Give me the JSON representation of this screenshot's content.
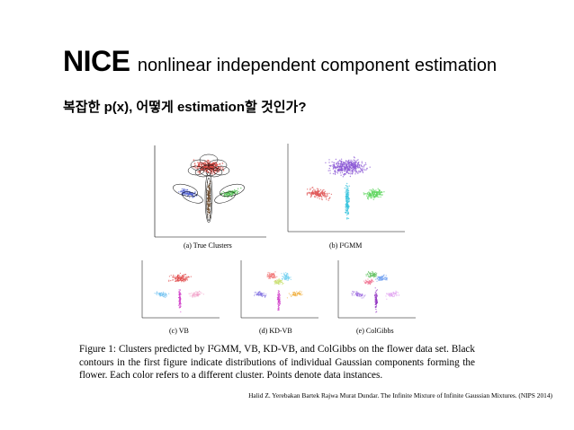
{
  "slide": {
    "title_main": "NICE",
    "title_sub": "nonlinear independent component estimation",
    "question": "복잡한 p(x), 어떻게 estimation할 것인가?"
  },
  "figure": {
    "panels": [
      {
        "label": "(a) True Clusters",
        "icon": "flower-ellipses-plot"
      },
      {
        "label": "(b) I²GMM",
        "icon": "scatter-cluster-plot"
      },
      {
        "label": "(c) VB",
        "icon": "scatter-cluster-plot"
      },
      {
        "label": "(d) KD-VB",
        "icon": "scatter-cluster-plot"
      },
      {
        "label": "(e) ColGibbs",
        "icon": "scatter-cluster-plot"
      }
    ],
    "caption": "Figure 1: Clusters predicted by I²GMM, VB, KD-VB, and ColGibbs on the flower data set. Black contours in the first figure indicate distributions of individual Gaussian components forming the flower. Each color refers to a different cluster. Points denote data instances.",
    "citation": "Halid Z. Yerebakan Bartek Rajwa Murat Dundar. The Infinite Mixture of Infinite Gaussian Mixtures. (NIPS 2014)"
  },
  "colors": {
    "petal": "#d9463f",
    "leaf_left": "#4a5bd0",
    "leaf_right": "#4fbf4f",
    "stem": "#6b4a2b",
    "head_purple": "#8c5ad6",
    "stem_cyan": "#39c4dd",
    "leaf_red": "#e05a5a",
    "leaf_green": "#5ed65e",
    "stem_magenta": "#d03ec8"
  }
}
